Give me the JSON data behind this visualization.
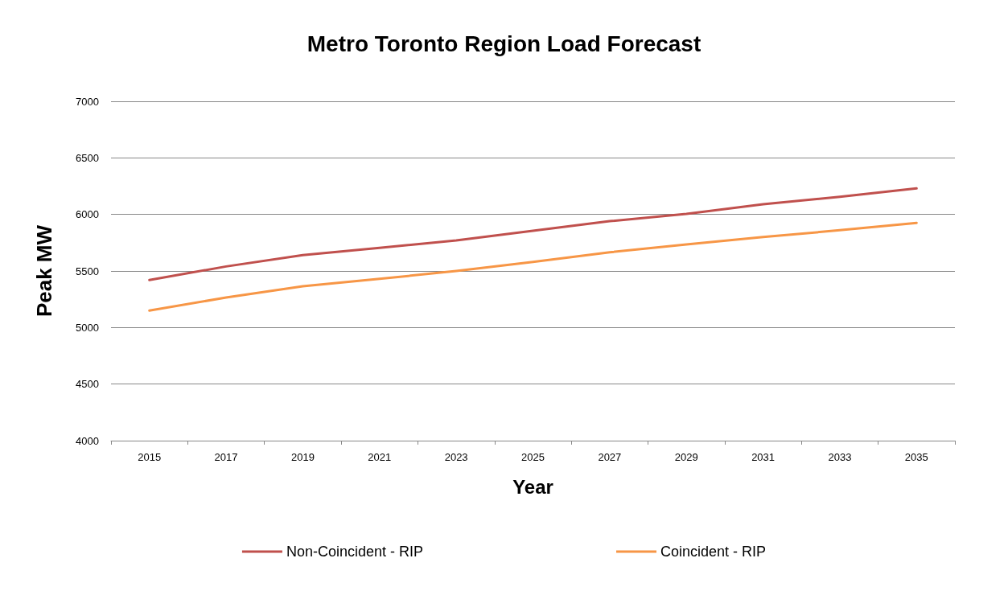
{
  "chart_data": {
    "type": "line",
    "title": "Metro Toronto Region Load Forecast",
    "xlabel": "Year",
    "ylabel": "Peak MW",
    "categories": [
      "2015",
      "2017",
      "2019",
      "2021",
      "2023",
      "2025",
      "2027",
      "2029",
      "2031",
      "2033",
      "2035"
    ],
    "series": [
      {
        "name": "Non-Coincident - RIP",
        "color": "#c0504d",
        "values": [
          5420,
          5540,
          5640,
          5705,
          5770,
          5855,
          5940,
          6005,
          6090,
          6155,
          6230
        ]
      },
      {
        "name": "Coincident - RIP",
        "color": "#f79646",
        "values": [
          5150,
          5265,
          5365,
          5430,
          5500,
          5580,
          5665,
          5735,
          5800,
          5860,
          5925
        ]
      }
    ],
    "ylim": [
      4000,
      7000
    ],
    "yticks": [
      4000,
      4500,
      5000,
      5500,
      6000,
      6500,
      7000
    ],
    "grid": "y",
    "legend": "bottom",
    "marker": "none",
    "line_style": "solid"
  }
}
